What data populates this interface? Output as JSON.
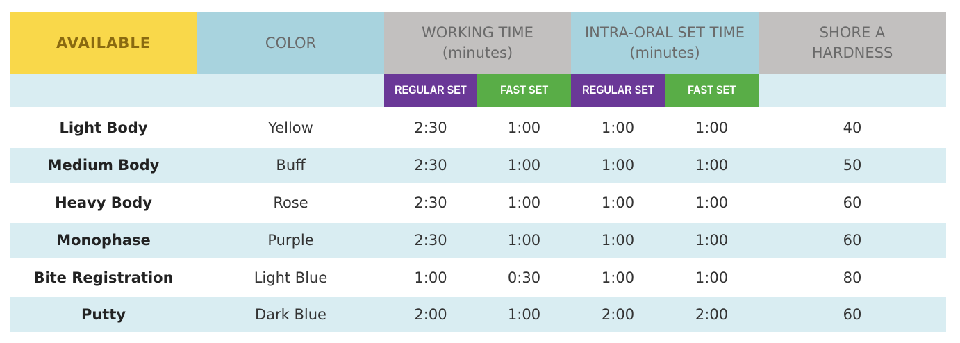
{
  "table": {
    "header": [
      {
        "lines": [
          "AVAILABLE"
        ]
      },
      {
        "lines": [
          "COLOR"
        ]
      },
      {
        "lines": [
          "WORKING TIME",
          "(minutes)"
        ]
      },
      {
        "lines": [
          "INTRA-ORAL SET TIME",
          "(minutes)"
        ]
      },
      {
        "lines": [
          "SHORE A",
          "HARDNESS"
        ]
      }
    ],
    "subheader": [
      "REGULAR SET",
      "FAST SET",
      "REGULAR SET",
      "FAST SET"
    ],
    "rows": [
      [
        "Light Body",
        "Yellow",
        "2:30",
        "1:00",
        "1:00",
        "1:00",
        "40"
      ],
      [
        "Medium Body",
        "Buff",
        "2:30",
        "1:00",
        "1:00",
        "1:00",
        "50"
      ],
      [
        "Heavy Body",
        "Rose",
        "2:30",
        "1:00",
        "1:00",
        "1:00",
        "60"
      ],
      [
        "Monophase",
        "Purple",
        "2:30",
        "1:00",
        "1:00",
        "1:00",
        "60"
      ],
      [
        "Bite Registration",
        "Light Blue",
        "1:00",
        "0:30",
        "1:00",
        "1:00",
        "80"
      ],
      [
        "Putty",
        "Dark Blue",
        "2:00",
        "1:00",
        "2:00",
        "2:00",
        "60"
      ]
    ]
  }
}
